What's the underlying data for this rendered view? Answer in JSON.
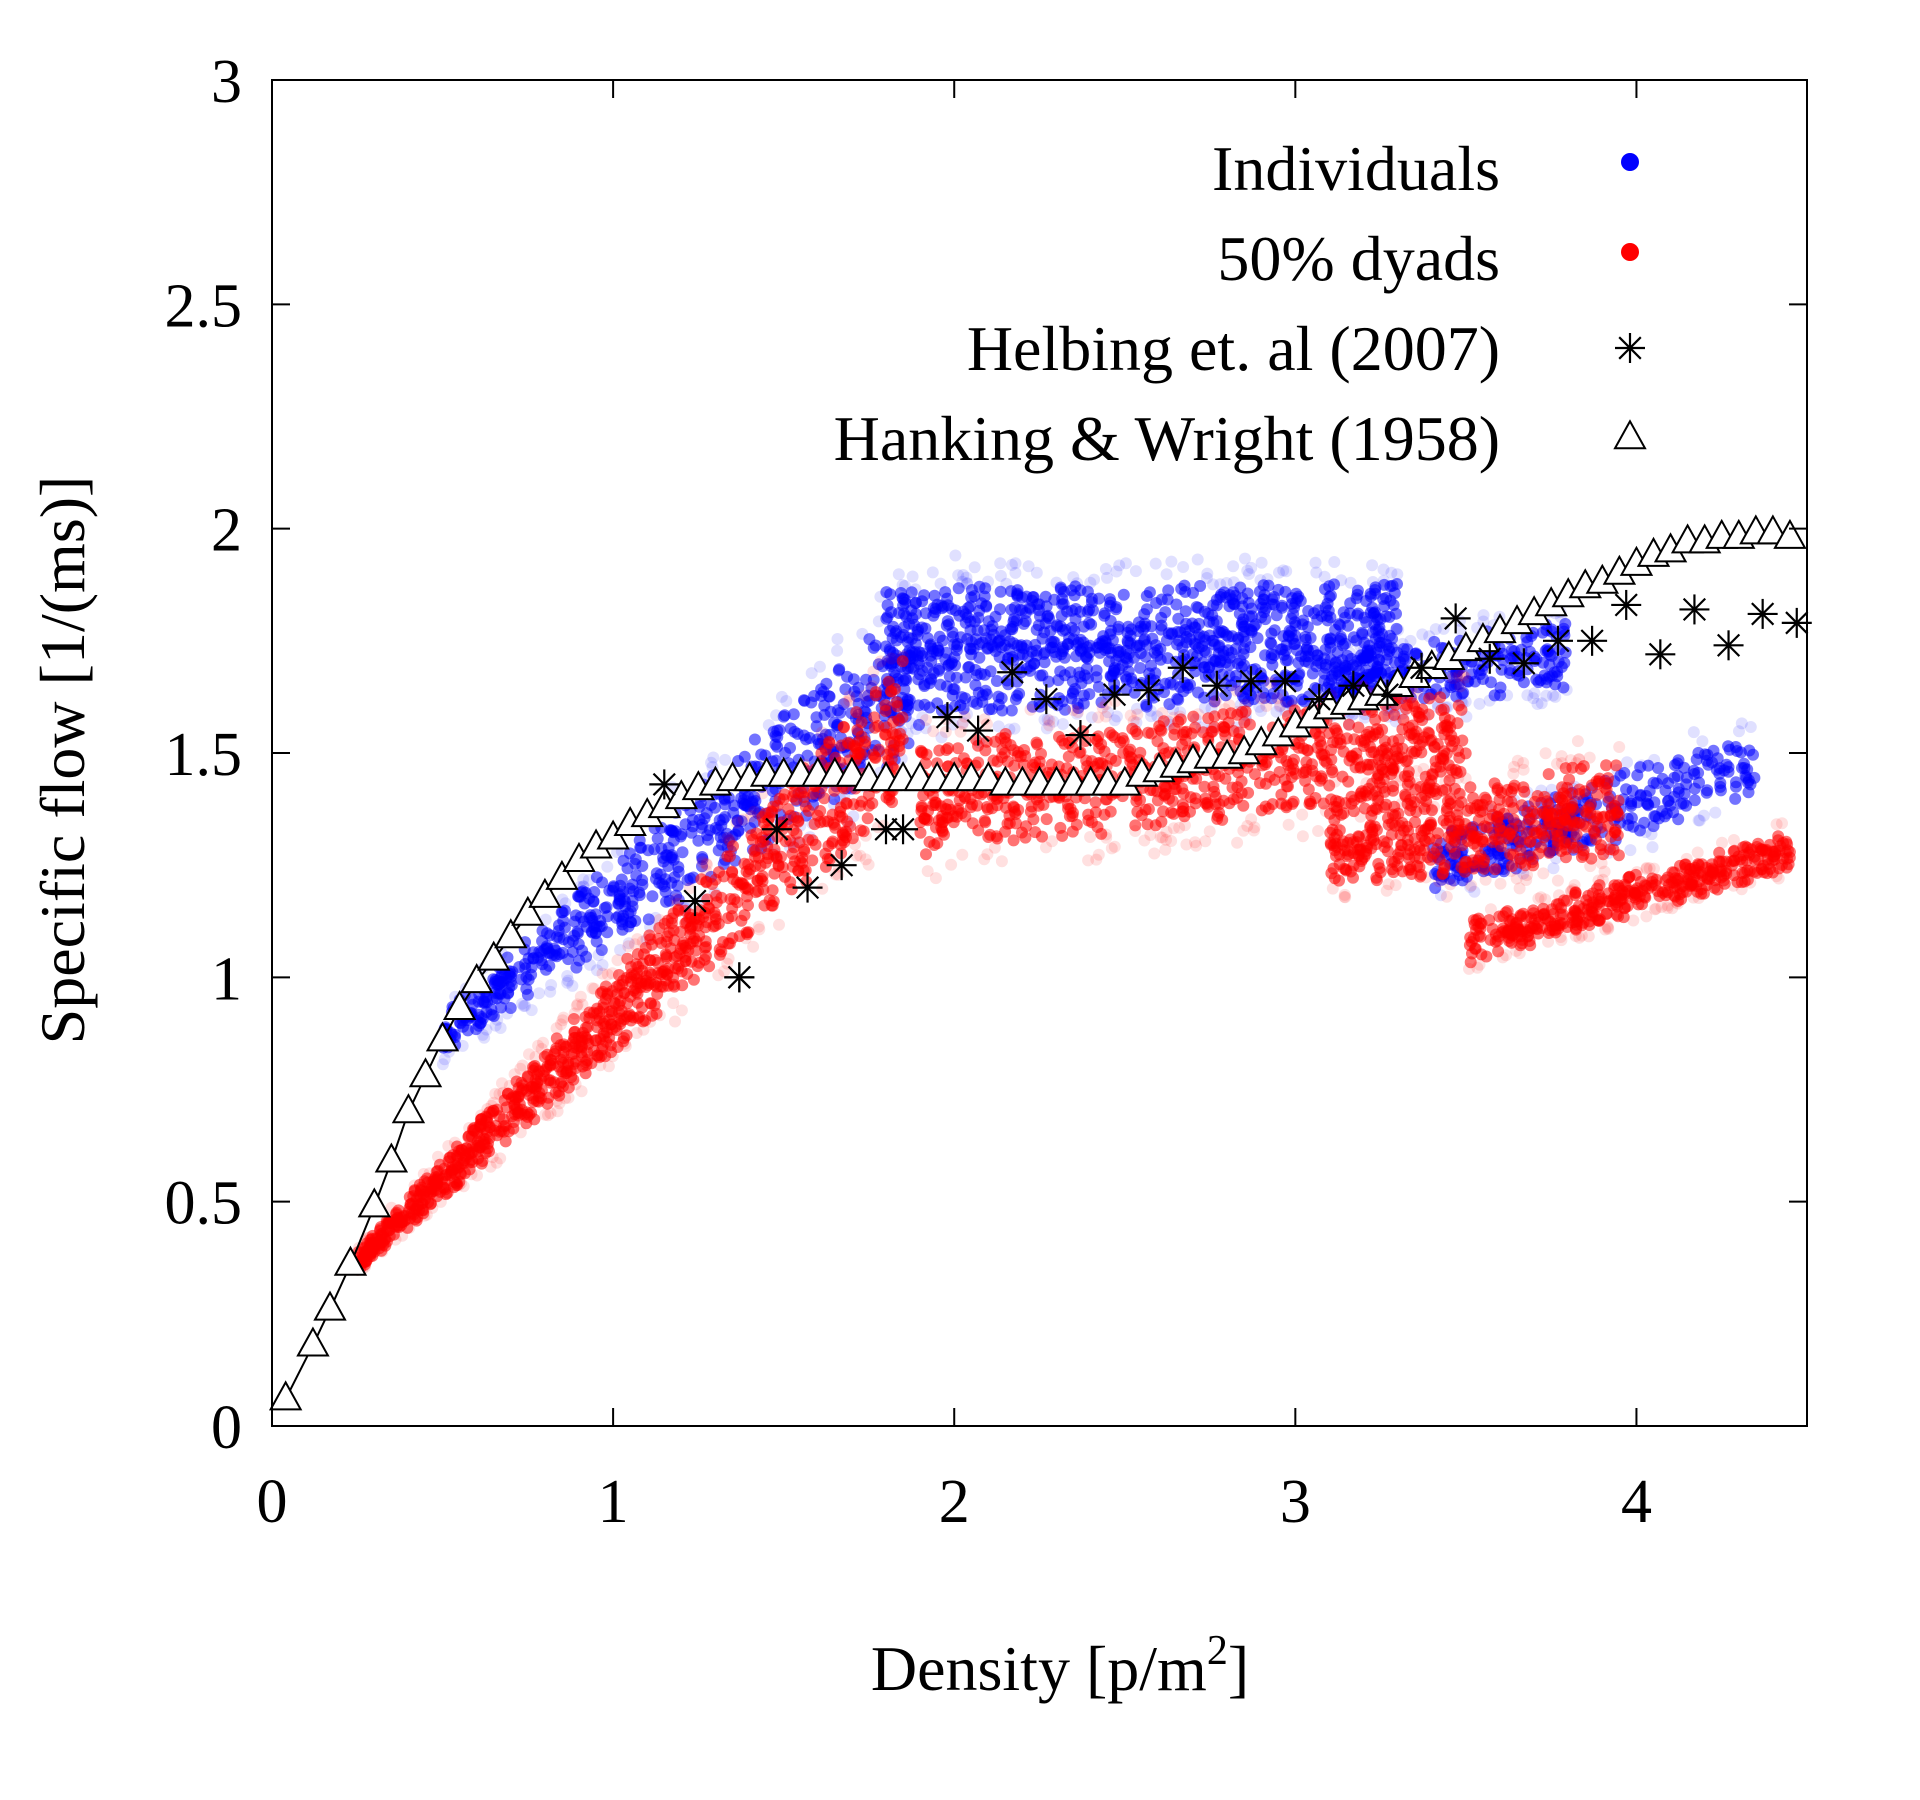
{
  "chart_data": {
    "type": "scatter",
    "title": "",
    "xlabel": "Density [p/m",
    "xlabel_sup": "2",
    "xlabel_suffix": "]",
    "ylabel": "Specific flow [1/(ms)]",
    "xlim": [
      0,
      4.5
    ],
    "ylim": [
      0,
      3
    ],
    "xticks": [
      0,
      1,
      2,
      3,
      4
    ],
    "xtick_labels": [
      "0",
      "1",
      "2",
      "3",
      "4"
    ],
    "yticks": [
      0,
      0.5,
      1,
      1.5,
      2,
      2.5,
      3
    ],
    "ytick_labels": [
      "0",
      "0.5",
      "1",
      "1.5",
      "2",
      "2.5",
      "3"
    ],
    "grid": false,
    "legend_position": "top-right",
    "colors": {
      "individuals": "#0000ff",
      "dyads": "#ff0000",
      "markers": "#000000"
    },
    "series": [
      {
        "name": "Individuals",
        "marker": "dot",
        "color": "#0000ff",
        "clusters": [
          {
            "x": [
              0.5,
              1.9
            ],
            "y_lower": [
              0.8,
              1.42
            ],
            "y_upper": [
              0.95,
              1.95
            ],
            "count": 700
          },
          {
            "x": [
              1.8,
              3.3
            ],
            "y_lower": [
              1.5,
              1.55
            ],
            "y_upper": [
              1.95,
              1.95
            ],
            "count": 1100
          },
          {
            "x": [
              3.1,
              3.8
            ],
            "y_lower": [
              1.55,
              1.6
            ],
            "y_upper": [
              1.75,
              1.85
            ],
            "count": 300
          },
          {
            "x": [
              3.4,
              4.35
            ],
            "y_lower": [
              1.15,
              1.35
            ],
            "y_upper": [
              1.35,
              1.6
            ],
            "count": 350
          }
        ]
      },
      {
        "name": "50% dyads",
        "marker": "dot",
        "color": "#ff0000",
        "clusters": [
          {
            "x": [
              0.25,
              1.85
            ],
            "y_lower": [
              0.33,
              1.3
            ],
            "y_upper": [
              0.4,
              1.8
            ],
            "count": 1100
          },
          {
            "x": [
              1.9,
              3.5
            ],
            "y_lower": [
              1.2,
              1.35
            ],
            "y_upper": [
              1.6,
              1.7
            ],
            "count": 900
          },
          {
            "x": [
              3.1,
              3.95
            ],
            "y_lower": [
              1.15,
              1.2
            ],
            "y_upper": [
              1.45,
              1.55
            ],
            "count": 500
          },
          {
            "x": [
              3.5,
              4.45
            ],
            "y_lower": [
              1.0,
              1.22
            ],
            "y_upper": [
              1.15,
              1.35
            ],
            "count": 450
          }
        ]
      },
      {
        "name": "Helbing et. al (2007)",
        "marker": "asterisk",
        "color": "#000000",
        "x": [
          1.15,
          1.24,
          1.37,
          1.37,
          1.48,
          1.57,
          1.67,
          1.8,
          1.85,
          1.98,
          2.07,
          2.17,
          2.27,
          2.37,
          2.47,
          2.57,
          2.67,
          2.77,
          2.87,
          2.97,
          3.07,
          3.17,
          3.27,
          3.37,
          3.47,
          3.57,
          3.67,
          3.77,
          3.87,
          3.97,
          4.07,
          4.17,
          4.27,
          4.37,
          4.47
        ],
        "y": [
          1.43,
          1.17,
          1.0,
          1.0,
          1.33,
          1.2,
          1.25,
          1.33,
          1.33,
          1.58,
          1.55,
          1.68,
          1.62,
          1.54,
          1.63,
          1.64,
          1.69,
          1.65,
          1.66,
          1.66,
          1.62,
          1.65,
          1.63,
          1.69,
          1.8,
          1.71,
          1.7,
          1.75,
          1.75,
          1.83,
          1.72,
          1.82,
          1.74,
          1.81,
          1.79
        ]
      },
      {
        "name": "Hanking & Wright (1958)",
        "marker": "triangle",
        "color": "#000000",
        "x": [
          0.04,
          0.12,
          0.17,
          0.23,
          0.3,
          0.35,
          0.4,
          0.45,
          0.5,
          0.55,
          0.6,
          0.65,
          0.7,
          0.75,
          0.8,
          0.85,
          0.9,
          0.95,
          1.0,
          1.05,
          1.1,
          1.15,
          1.2,
          1.25,
          1.3,
          1.35,
          1.4,
          1.45,
          1.5,
          1.55,
          1.6,
          1.65,
          1.7,
          1.75,
          1.8,
          1.85,
          1.9,
          1.95,
          2.0,
          2.05,
          2.1,
          2.15,
          2.2,
          2.25,
          2.3,
          2.35,
          2.4,
          2.45,
          2.5,
          2.55,
          2.6,
          2.65,
          2.7,
          2.75,
          2.8,
          2.85,
          2.9,
          2.95,
          3.0,
          3.05,
          3.1,
          3.15,
          3.2,
          3.25,
          3.3,
          3.35,
          3.4,
          3.45,
          3.5,
          3.55,
          3.6,
          3.65,
          3.7,
          3.75,
          3.8,
          3.85,
          3.9,
          3.95,
          4.0,
          4.05,
          4.1,
          4.15,
          4.2,
          4.25,
          4.3,
          4.35,
          4.4,
          4.45
        ],
        "y": [
          0.06,
          0.18,
          0.26,
          0.36,
          0.49,
          0.59,
          0.7,
          0.78,
          0.86,
          0.93,
          0.99,
          1.04,
          1.09,
          1.14,
          1.18,
          1.22,
          1.26,
          1.29,
          1.31,
          1.34,
          1.36,
          1.38,
          1.4,
          1.42,
          1.43,
          1.44,
          1.44,
          1.45,
          1.45,
          1.45,
          1.45,
          1.45,
          1.45,
          1.44,
          1.44,
          1.44,
          1.44,
          1.44,
          1.44,
          1.44,
          1.44,
          1.43,
          1.43,
          1.43,
          1.43,
          1.43,
          1.43,
          1.43,
          1.43,
          1.45,
          1.46,
          1.47,
          1.48,
          1.49,
          1.49,
          1.5,
          1.52,
          1.54,
          1.56,
          1.58,
          1.6,
          1.61,
          1.62,
          1.63,
          1.65,
          1.67,
          1.69,
          1.71,
          1.73,
          1.75,
          1.77,
          1.79,
          1.81,
          1.83,
          1.85,
          1.87,
          1.88,
          1.9,
          1.92,
          1.94,
          1.95,
          1.97,
          1.97,
          1.98,
          1.98,
          1.99,
          1.99,
          1.98
        ]
      }
    ]
  }
}
